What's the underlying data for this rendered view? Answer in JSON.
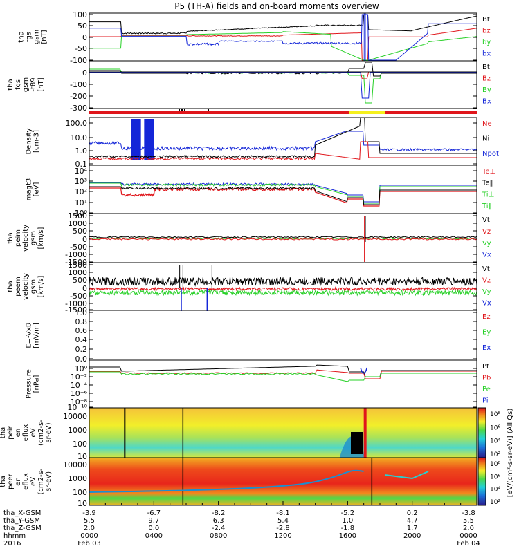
{
  "title": "P5 (TH-A) fields and on-board moments overview",
  "colors": {
    "black": "#000000",
    "red": "#e0161b",
    "green": "#26d026",
    "blue": "#1426d8",
    "yellow": "#f5f01e"
  },
  "panels": [
    {
      "id": "fgs",
      "ylabel": [
        "tha",
        "fgs",
        "gsm",
        "[nT]"
      ],
      "yticks": [
        "100",
        "50",
        "0",
        "-50",
        "-100"
      ],
      "legend": [
        {
          "t": "Bt",
          "c": "black"
        },
        {
          "t": "bz",
          "c": "red"
        },
        {
          "t": "by",
          "c": "green"
        },
        {
          "t": "bx",
          "c": "blue"
        }
      ]
    },
    {
      "id": "fgs_tail",
      "ylabel": [
        "tha",
        "fgs",
        "gsm",
        "-t89",
        "[nT]"
      ],
      "yticks": [
        "0",
        "-100",
        "-200",
        "-300"
      ],
      "legend": [
        {
          "t": "Bt",
          "c": "black"
        },
        {
          "t": "Bz",
          "c": "red"
        },
        {
          "t": "By",
          "c": "green"
        },
        {
          "t": "Bx",
          "c": "blue"
        }
      ]
    },
    {
      "id": "density",
      "ylabel": [
        "Density",
        "[cm-3]"
      ],
      "yticks": [
        "100.0",
        "10.0",
        "1.0",
        "0.1"
      ],
      "legend": [
        {
          "t": "Ne",
          "c": "red"
        },
        {
          "t": "Ni",
          "c": "black"
        },
        {
          "t": "Npot",
          "c": "blue"
        }
      ]
    },
    {
      "id": "temp",
      "ylabel": [
        "magt3",
        "[eV]"
      ],
      "yticks": [
        "10⁴",
        "10³",
        "10²",
        "10¹",
        "10⁰"
      ],
      "legend": [
        {
          "t": "Te⊥",
          "c": "red"
        },
        {
          "t": "Te‖",
          "c": "black"
        },
        {
          "t": "Ti⊥",
          "c": "green"
        },
        {
          "t": "Ti‖",
          "c": "green"
        }
      ]
    },
    {
      "id": "peim",
      "ylabel": [
        "tha",
        "peim",
        "velocity",
        "gsm",
        "[km/s]"
      ],
      "yticks": [
        "1500",
        "1000",
        "500",
        "0",
        "-500",
        "-1000",
        "-1500"
      ],
      "legend": [
        {
          "t": "Vt",
          "c": "black"
        },
        {
          "t": "Vz",
          "c": "red"
        },
        {
          "t": "Vy",
          "c": "green"
        },
        {
          "t": "Vx",
          "c": "blue"
        }
      ]
    },
    {
      "id": "peem",
      "ylabel": [
        "tha",
        "peem",
        "velocity",
        "gsm",
        "[km/s]"
      ],
      "yticks": [
        "1500",
        "1000",
        "500",
        "0",
        "-500",
        "-1000",
        "-1500"
      ],
      "legend": [
        {
          "t": "Vt",
          "c": "black"
        },
        {
          "t": "Vz",
          "c": "red"
        },
        {
          "t": "Vy",
          "c": "green"
        },
        {
          "t": "Vx",
          "c": "blue"
        }
      ]
    },
    {
      "id": "efield",
      "ylabel": [
        "E=-VxB",
        "[mV/m]"
      ],
      "yticks": [
        "1.0",
        "0.8",
        "0.6",
        "0.4",
        "0.2",
        "0.0"
      ],
      "legend": [
        {
          "t": "Ez",
          "c": "red"
        },
        {
          "t": "Ey",
          "c": "green"
        },
        {
          "t": "Ex",
          "c": "blue"
        }
      ]
    },
    {
      "id": "pressure",
      "ylabel": [
        "Pressure",
        "[nPa]"
      ],
      "yticks": [
        "10⁰",
        "10⁻²",
        "10⁻⁴",
        "10⁻⁶",
        "10⁻⁸",
        "10⁻¹⁰"
      ],
      "legend": [
        {
          "t": "Pt",
          "c": "black"
        },
        {
          "t": "Pb",
          "c": "red"
        },
        {
          "t": "Pe",
          "c": "green"
        },
        {
          "t": "Pi",
          "c": "blue"
        }
      ]
    },
    {
      "id": "peir",
      "ylabel": [
        "tha",
        "peir",
        "en",
        "eflux",
        "eV",
        "(cm2-s-",
        "sr-eV)"
      ],
      "yticks": [
        "10000",
        "1000",
        "100",
        "10"
      ],
      "colorbar": {
        "ticks": [
          "10⁸",
          "10⁶",
          "10⁴",
          "10²"
        ]
      }
    },
    {
      "id": "peer",
      "ylabel": [
        "tha",
        "peer",
        "en",
        "eflux",
        "eV",
        "(cm2-s-",
        "sr-eV)"
      ],
      "yticks": [
        "10000",
        "1000",
        "100",
        "10"
      ],
      "colorbar": {
        "ticks": [
          "10⁸",
          "10⁶",
          "10⁴",
          "10²"
        ]
      }
    }
  ],
  "colorbar_label": "[eV/(cm²-s-sr-eV)] (All Qs)",
  "xaxis": {
    "rows": [
      {
        "label": "tha_X-GSM",
        "vals": [
          "-3.9",
          "-6.7",
          "-8.2",
          "-8.1",
          "-5.2",
          "0.2",
          "-3.8"
        ]
      },
      {
        "label": "tha_Y-GSM",
        "vals": [
          "5.5",
          "9.7",
          "6.3",
          "5.4",
          "1.0",
          "4.7",
          "5.5"
        ]
      },
      {
        "label": "tha_Z-GSM",
        "vals": [
          "2.0",
          "0.0",
          "-2.4",
          "-2.8",
          "-1.8",
          "1.7",
          "2.0"
        ]
      },
      {
        "label": "hhmm",
        "vals": [
          "0000",
          "0400",
          "0800",
          "1200",
          "1600",
          "2000",
          "0000"
        ]
      },
      {
        "label": "2016",
        "vals": [
          "Feb 03",
          "",
          "",
          "",
          "",
          "",
          "Feb 04"
        ]
      }
    ]
  },
  "chart_data": {
    "type": "line",
    "title": "P5 (TH-A) fields and on-board moments overview",
    "x_hours": [
      0,
      4,
      8,
      12,
      16,
      20,
      24
    ],
    "x_tick_labels": [
      "0000",
      "0400",
      "0800",
      "1200",
      "1600",
      "2000",
      "0000"
    ],
    "series_summary": [
      {
        "panel": "fgs",
        "name": "Bt",
        "values_at_ticks": [
          70,
          15,
          35,
          45,
          60,
          20,
          95
        ]
      },
      {
        "panel": "fgs",
        "name": "bz",
        "values_at_ticks": [
          5,
          8,
          5,
          15,
          20,
          0,
          50
        ]
      },
      {
        "panel": "fgs",
        "name": "by",
        "values_at_ticks": [
          -50,
          10,
          15,
          20,
          -20,
          -100,
          0
        ]
      },
      {
        "panel": "fgs",
        "name": "bx",
        "values_at_ticks": [
          45,
          5,
          -35,
          -20,
          -30,
          50,
          60
        ]
      },
      {
        "panel": "density",
        "name": "Ni",
        "values_at_ticks": [
          0.6,
          0.6,
          0.6,
          0.6,
          5,
          1.0,
          0.6
        ]
      },
      {
        "panel": "temp",
        "name": "Ti‖",
        "values_at_ticks": [
          3000,
          2500,
          2500,
          1500,
          300,
          1500,
          2000
        ]
      },
      {
        "panel": "temp",
        "name": "Te⊥",
        "values_at_ticks": [
          200,
          200,
          150,
          100,
          40,
          100,
          200
        ]
      }
    ],
    "ylim_fgs": [
      -100,
      100
    ],
    "ylim_fgs_tail": [
      -340,
      40
    ],
    "ylim_velocity": [
      -1500,
      1500
    ],
    "ylim_efield": [
      0,
      1
    ]
  }
}
